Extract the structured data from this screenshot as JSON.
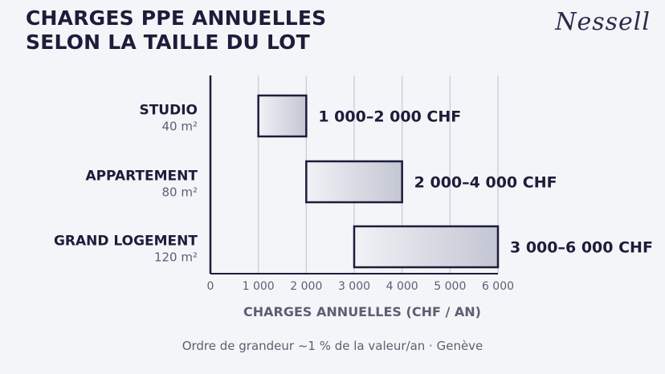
{
  "header": {
    "title_line1": "CHARGES PPE ANNUELLES",
    "title_line2": "SELON LA TAILLE DU LOT",
    "logo_text": "Nessell"
  },
  "footnote": "Ordre de grandeur ~1 % de la valeur/an · Genève",
  "colors": {
    "bar_fill_start": "#f1f2f6",
    "bar_fill_end": "#c3c6d3",
    "bar_stroke": "#1b1d3a",
    "text_dark": "#1b1d3a",
    "text_muted": "#5b5f73",
    "grid": "#cfd1da"
  },
  "chart_data": {
    "type": "bar",
    "orientation": "horizontal-range",
    "categories": [
      "STUDIO",
      "APPARTEMENT",
      "GRAND LOGEMENT"
    ],
    "sublabels": [
      "40 m²",
      "80 m²",
      "120 m²"
    ],
    "ranges": [
      [
        1000,
        2000
      ],
      [
        2000,
        4000
      ],
      [
        3000,
        6000
      ]
    ],
    "data_labels": [
      "1 000–2 000 CHF",
      "2 000–4 000 CHF",
      "3 000–6 000 CHF"
    ],
    "xlabel": "CHARGES ANNUELLES (CHF / AN)",
    "xlim": [
      0,
      6000
    ],
    "xticks": [
      0,
      1000,
      2000,
      3000,
      4000,
      5000,
      6000
    ],
    "xtick_labels": [
      "0",
      "1 000",
      "2 000",
      "3 000",
      "4 000",
      "5 000",
      "6 000"
    ],
    "grid": true
  }
}
